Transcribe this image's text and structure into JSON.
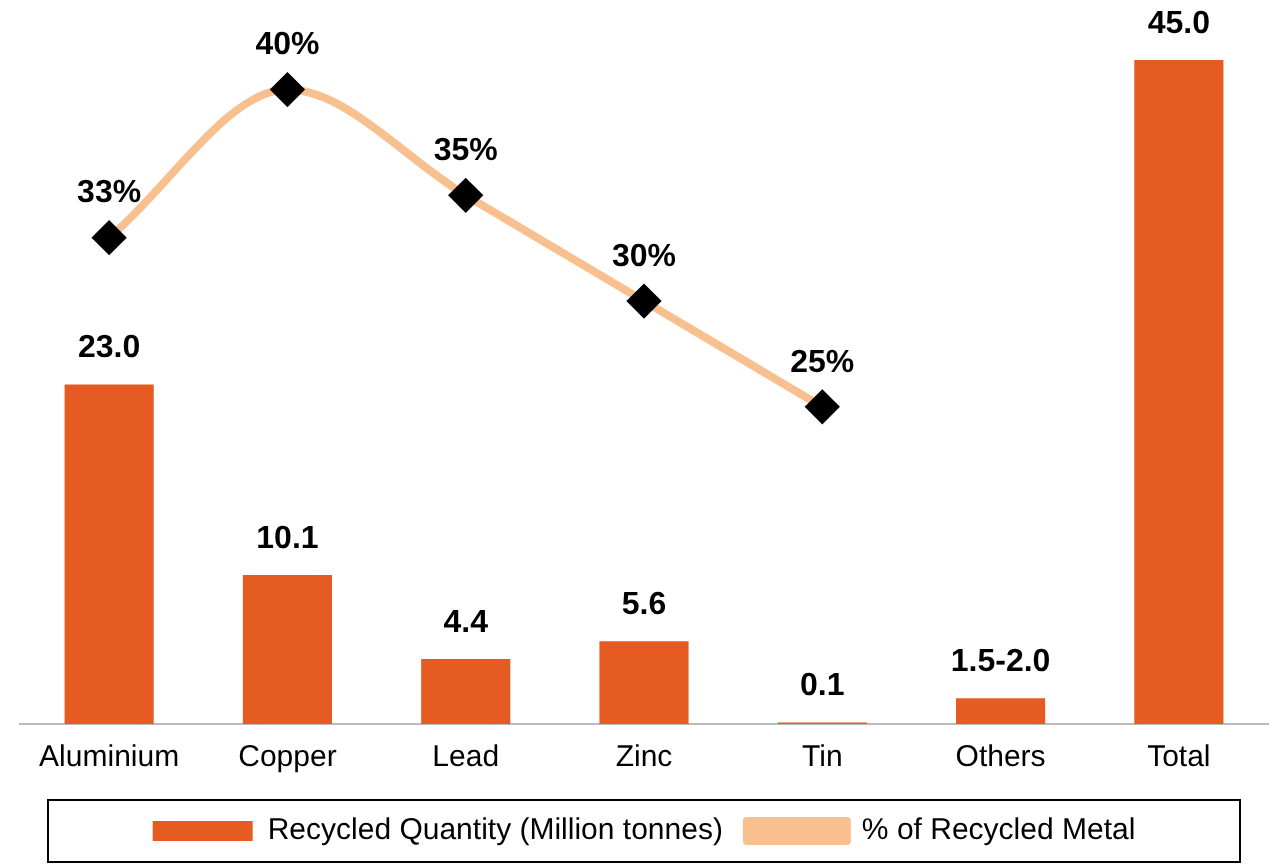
{
  "chart_data": {
    "type": "bar",
    "categories": [
      "Aluminium",
      "Copper",
      "Lead",
      "Zinc",
      "Tin",
      "Others",
      "Total"
    ],
    "series": [
      {
        "name": "Recycled Quantity (Million tonnes)",
        "color": "#e55b22",
        "values": [
          23.0,
          10.1,
          4.4,
          5.6,
          0.1,
          1.75,
          45.0
        ],
        "value_labels": [
          "23.0",
          "10.1",
          "4.4",
          "5.6",
          "0.1",
          "1.5-2.0",
          "45.0"
        ]
      },
      {
        "type": "line",
        "name": "% of Recycled Metal",
        "color": "#f9c08f",
        "axis": "y2",
        "values": [
          33,
          40,
          35,
          30,
          25,
          null,
          null
        ],
        "value_labels": [
          "33%",
          "40%",
          "35%",
          "30%",
          "25%",
          null,
          null
        ]
      }
    ],
    "ylim": [
      0,
      45
    ],
    "y2lim": [
      10,
      41.4
    ],
    "tick_labels": "x",
    "grid": false,
    "legend": "bottom",
    "marker": "diamond",
    "line_style": "solid"
  }
}
